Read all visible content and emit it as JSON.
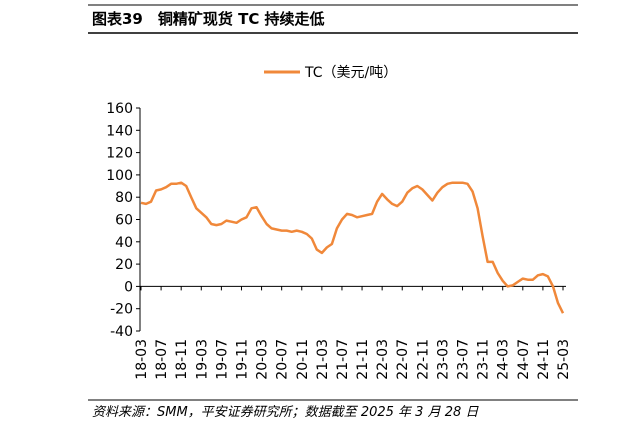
{
  "chart_data": {
    "type": "line",
    "title": "图表39　铜精矿现货 TC 持续走低",
    "source": "资料来源：SMM，平安证券研究所；数据截至 2025 年 3 月 28 日",
    "categories": [
      "18-03",
      null,
      null,
      null,
      "18-07",
      null,
      null,
      null,
      "18-11",
      null,
      null,
      null,
      "19-03",
      null,
      null,
      null,
      "19-07",
      null,
      null,
      null,
      "19-11",
      null,
      null,
      null,
      "20-03",
      null,
      null,
      null,
      "20-07",
      null,
      null,
      null,
      "20-11",
      null,
      null,
      null,
      "21-03",
      null,
      null,
      null,
      "21-07",
      null,
      null,
      null,
      "21-11",
      null,
      null,
      null,
      "22-03",
      null,
      null,
      null,
      "22-07",
      null,
      null,
      null,
      "22-11",
      null,
      null,
      null,
      "23-03",
      null,
      null,
      null,
      "23-07",
      null,
      null,
      null,
      "23-11",
      null,
      null,
      null,
      "24-03",
      null,
      null,
      null,
      "24-07",
      null,
      null,
      null,
      "24-11",
      null,
      null,
      null,
      "25-03"
    ],
    "series": [
      {
        "name": "TC（美元/吨）",
        "color": "#f0883a",
        "values": [
          75,
          74,
          76,
          86,
          87,
          89,
          92,
          92,
          93,
          90,
          80,
          70,
          66,
          62,
          56,
          55,
          56,
          59,
          58,
          57,
          60,
          62,
          70,
          71,
          63,
          56,
          52,
          51,
          50,
          50,
          49,
          50,
          49,
          47,
          43,
          33,
          30,
          35,
          38,
          52,
          60,
          65,
          64,
          62,
          63,
          64,
          65,
          76,
          83,
          78,
          74,
          72,
          76,
          84,
          88,
          90,
          87,
          82,
          77,
          84,
          89,
          92,
          93,
          93,
          93,
          92,
          85,
          70,
          45,
          22,
          22,
          12,
          5,
          0,
          1,
          4,
          7,
          6,
          6,
          10,
          11,
          9,
          0,
          -15,
          -24
        ]
      }
    ],
    "ylim": [
      -40,
      160
    ],
    "yticks": [
      -40,
      -20,
      0,
      20,
      40,
      60,
      80,
      100,
      120,
      140,
      160
    ],
    "legend": "top"
  }
}
